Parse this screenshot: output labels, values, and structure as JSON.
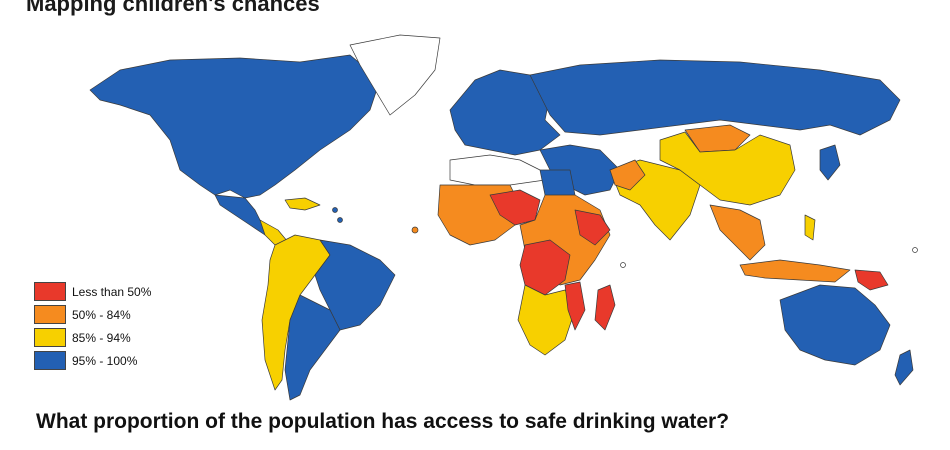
{
  "header": {
    "title": "Mapping children's chances"
  },
  "question": "What proportion of the population has access to safe drinking water?",
  "legend": {
    "items": [
      {
        "label": "Less than 50%",
        "color": "#e8392b"
      },
      {
        "label": "50% - 84%",
        "color": "#f58b1f"
      },
      {
        "label": "85% - 94%",
        "color": "#f7d000"
      },
      {
        "label": "95% - 100%",
        "color": "#2360b3"
      }
    ],
    "no_data_color": "#ffffff"
  },
  "map": {
    "type": "choropleth-world",
    "regions": [
      {
        "name": "north-america",
        "category": "95% - 100%"
      },
      {
        "name": "greenland",
        "category": "no data"
      },
      {
        "name": "central-america",
        "category": "85% - 94%"
      },
      {
        "name": "caribbean",
        "category": "85% - 94%"
      },
      {
        "name": "south-america-north",
        "category": "85% - 94%"
      },
      {
        "name": "brazil",
        "category": "95% - 100%"
      },
      {
        "name": "south-america-south",
        "category": "95% - 100%"
      },
      {
        "name": "europe",
        "category": "95% - 100%"
      },
      {
        "name": "russia",
        "category": "95% - 100%"
      },
      {
        "name": "west-africa",
        "category": "50% - 84%"
      },
      {
        "name": "niger-chad",
        "category": "Less than 50%"
      },
      {
        "name": "central-africa",
        "category": "Less than 50%"
      },
      {
        "name": "east-africa-horn",
        "category": "Less than 50%"
      },
      {
        "name": "southern-africa",
        "category": "85% - 94%"
      },
      {
        "name": "madagascar",
        "category": "Less than 50%"
      },
      {
        "name": "middle-east",
        "category": "95% - 100%"
      },
      {
        "name": "south-asia",
        "category": "85% - 94%"
      },
      {
        "name": "mongolia",
        "category": "50% - 84%"
      },
      {
        "name": "china",
        "category": "85% - 94%"
      },
      {
        "name": "southeast-asia",
        "category": "50% - 84%"
      },
      {
        "name": "papua-new-guinea",
        "category": "Less than 50%"
      },
      {
        "name": "australia",
        "category": "95% - 100%"
      },
      {
        "name": "new-zealand",
        "category": "95% - 100%"
      }
    ]
  }
}
